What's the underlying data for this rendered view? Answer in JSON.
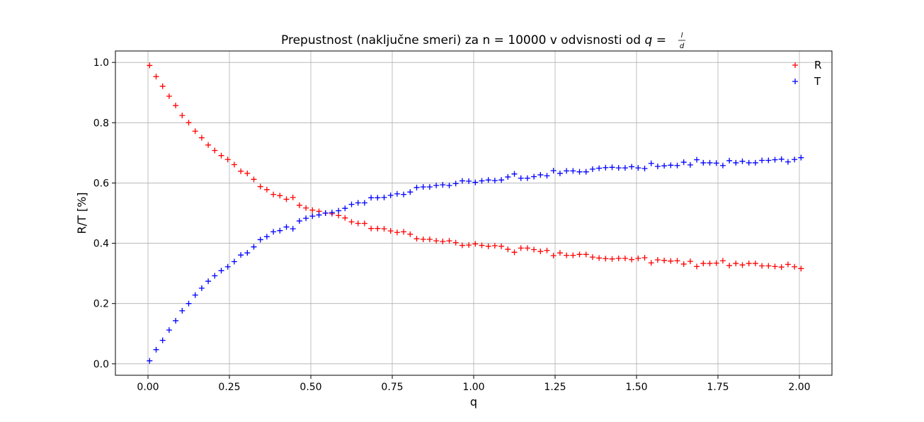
{
  "chart_data": {
    "type": "scatter",
    "title": "Prepustnost (naključne smeri) za n = 10000 v odvisnosti od ",
    "title_math": {
      "var": "q",
      "eq": " = ",
      "num": "l",
      "den": "d"
    },
    "xlabel": "q",
    "ylabel": "R/T [%]",
    "xlim": [
      -0.1,
      2.1
    ],
    "ylim": [
      -0.038,
      1.038
    ],
    "xticks": [
      0.0,
      0.25,
      0.5,
      0.75,
      1.0,
      1.25,
      1.5,
      1.75,
      2.0
    ],
    "xtick_labels": [
      "0.00",
      "0.25",
      "0.50",
      "0.75",
      "1.00",
      "1.25",
      "1.50",
      "1.75",
      "2.00"
    ],
    "yticks": [
      0.0,
      0.2,
      0.4,
      0.6,
      0.8,
      1.0
    ],
    "ytick_labels": [
      "0.0",
      "0.2",
      "0.4",
      "0.6",
      "0.8",
      "1.0"
    ],
    "grid": true,
    "legend_position": "top-right",
    "marker": "+",
    "series": [
      {
        "name": "R",
        "color": "#ff0000",
        "x": [
          0.005,
          0.025,
          0.045,
          0.065,
          0.085,
          0.105,
          0.125,
          0.145,
          0.165,
          0.185,
          0.205,
          0.225,
          0.245,
          0.265,
          0.285,
          0.305,
          0.325,
          0.345,
          0.365,
          0.385,
          0.405,
          0.425,
          0.445,
          0.465,
          0.485,
          0.505,
          0.525,
          0.545,
          0.565,
          0.585,
          0.605,
          0.625,
          0.645,
          0.665,
          0.685,
          0.705,
          0.725,
          0.745,
          0.765,
          0.785,
          0.805,
          0.825,
          0.845,
          0.865,
          0.885,
          0.905,
          0.925,
          0.945,
          0.965,
          0.985,
          1.005,
          1.025,
          1.045,
          1.065,
          1.085,
          1.105,
          1.125,
          1.145,
          1.165,
          1.185,
          1.205,
          1.225,
          1.245,
          1.265,
          1.285,
          1.305,
          1.325,
          1.345,
          1.365,
          1.385,
          1.405,
          1.425,
          1.445,
          1.465,
          1.485,
          1.505,
          1.525,
          1.545,
          1.565,
          1.585,
          1.605,
          1.625,
          1.645,
          1.665,
          1.685,
          1.705,
          1.725,
          1.745,
          1.765,
          1.785,
          1.805,
          1.825,
          1.845,
          1.865,
          1.885,
          1.905,
          1.925,
          1.945,
          1.965,
          1.985,
          2.005
        ],
        "y": [
          0.99,
          0.953,
          0.921,
          0.888,
          0.857,
          0.824,
          0.8,
          0.772,
          0.75,
          0.726,
          0.708,
          0.691,
          0.678,
          0.661,
          0.639,
          0.632,
          0.612,
          0.588,
          0.578,
          0.562,
          0.558,
          0.546,
          0.552,
          0.526,
          0.517,
          0.51,
          0.506,
          0.5,
          0.498,
          0.492,
          0.484,
          0.471,
          0.466,
          0.466,
          0.449,
          0.449,
          0.448,
          0.441,
          0.436,
          0.438,
          0.43,
          0.415,
          0.413,
          0.413,
          0.408,
          0.406,
          0.408,
          0.402,
          0.393,
          0.394,
          0.398,
          0.393,
          0.39,
          0.392,
          0.39,
          0.38,
          0.37,
          0.384,
          0.384,
          0.379,
          0.373,
          0.376,
          0.359,
          0.368,
          0.36,
          0.36,
          0.363,
          0.363,
          0.354,
          0.351,
          0.349,
          0.348,
          0.35,
          0.35,
          0.346,
          0.35,
          0.352,
          0.335,
          0.345,
          0.343,
          0.341,
          0.342,
          0.331,
          0.34,
          0.323,
          0.333,
          0.333,
          0.334,
          0.342,
          0.326,
          0.333,
          0.328,
          0.333,
          0.333,
          0.325,
          0.325,
          0.323,
          0.321,
          0.33,
          0.322,
          0.316
        ]
      },
      {
        "name": "T",
        "color": "#0000ff",
        "x": [
          0.005,
          0.025,
          0.045,
          0.065,
          0.085,
          0.105,
          0.125,
          0.145,
          0.165,
          0.185,
          0.205,
          0.225,
          0.245,
          0.265,
          0.285,
          0.305,
          0.325,
          0.345,
          0.365,
          0.385,
          0.405,
          0.425,
          0.445,
          0.465,
          0.485,
          0.505,
          0.525,
          0.545,
          0.565,
          0.585,
          0.605,
          0.625,
          0.645,
          0.665,
          0.685,
          0.705,
          0.725,
          0.745,
          0.765,
          0.785,
          0.805,
          0.825,
          0.845,
          0.865,
          0.885,
          0.905,
          0.925,
          0.945,
          0.965,
          0.985,
          1.005,
          1.025,
          1.045,
          1.065,
          1.085,
          1.105,
          1.125,
          1.145,
          1.165,
          1.185,
          1.205,
          1.225,
          1.245,
          1.265,
          1.285,
          1.305,
          1.325,
          1.345,
          1.365,
          1.385,
          1.405,
          1.425,
          1.445,
          1.465,
          1.485,
          1.505,
          1.525,
          1.545,
          1.565,
          1.585,
          1.605,
          1.625,
          1.645,
          1.665,
          1.685,
          1.705,
          1.725,
          1.745,
          1.765,
          1.785,
          1.805,
          1.825,
          1.845,
          1.865,
          1.885,
          1.905,
          1.925,
          1.945,
          1.965,
          1.985,
          2.005
        ],
        "y": [
          0.01,
          0.047,
          0.078,
          0.112,
          0.143,
          0.176,
          0.2,
          0.228,
          0.251,
          0.274,
          0.292,
          0.309,
          0.322,
          0.339,
          0.361,
          0.368,
          0.388,
          0.412,
          0.422,
          0.438,
          0.442,
          0.454,
          0.448,
          0.474,
          0.483,
          0.49,
          0.494,
          0.5,
          0.502,
          0.508,
          0.516,
          0.529,
          0.534,
          0.534,
          0.551,
          0.551,
          0.552,
          0.559,
          0.564,
          0.562,
          0.57,
          0.585,
          0.587,
          0.587,
          0.592,
          0.594,
          0.592,
          0.598,
          0.607,
          0.606,
          0.602,
          0.607,
          0.61,
          0.608,
          0.61,
          0.62,
          0.63,
          0.616,
          0.616,
          0.621,
          0.627,
          0.624,
          0.641,
          0.632,
          0.64,
          0.64,
          0.637,
          0.637,
          0.646,
          0.649,
          0.651,
          0.652,
          0.65,
          0.65,
          0.654,
          0.65,
          0.648,
          0.665,
          0.655,
          0.657,
          0.659,
          0.658,
          0.669,
          0.66,
          0.677,
          0.667,
          0.667,
          0.666,
          0.658,
          0.674,
          0.667,
          0.672,
          0.667,
          0.667,
          0.675,
          0.675,
          0.677,
          0.679,
          0.67,
          0.678,
          0.684
        ]
      }
    ]
  }
}
